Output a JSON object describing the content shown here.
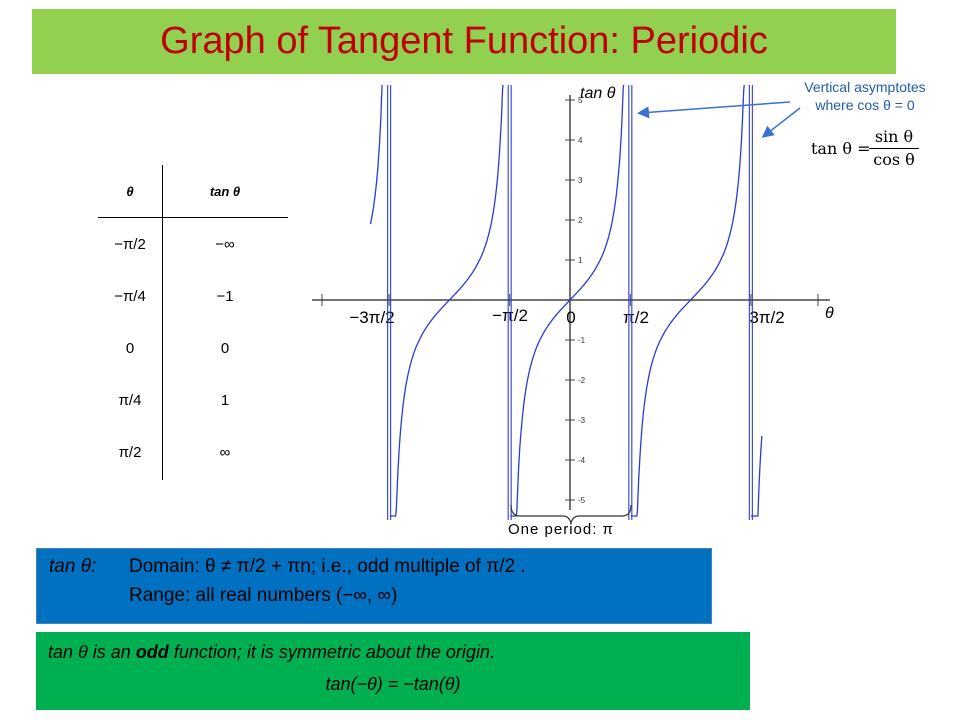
{
  "title": "Graph of Tangent Function: Periodic",
  "colors": {
    "title_bar": "#92d050",
    "title_text": "#c00000",
    "curve": "#2a3bd6",
    "asymptote_note": "#1f5ca8",
    "domain_box": "#0070c0",
    "odd_box": "#00b050"
  },
  "table": {
    "headers": [
      "θ",
      "tan θ"
    ],
    "rows": [
      [
        "−π/2",
        "−∞"
      ],
      [
        "−π/4",
        "−1"
      ],
      [
        "0",
        "0"
      ],
      [
        "π/4",
        "1"
      ],
      [
        "π/2",
        "∞"
      ]
    ]
  },
  "chart_data": {
    "type": "line",
    "function": "tan",
    "xlabel": "θ",
    "ylabel": "tan θ",
    "xlim": [
      -5.2,
      5.0
    ],
    "ylim": [
      -5.0,
      5.0
    ],
    "x_tick_labels": [
      "−3π/2",
      "−π/2",
      "0",
      "π/2",
      "3π/2"
    ],
    "x_tick_values": [
      -4.712,
      -1.571,
      0,
      1.571,
      4.712
    ],
    "y_tick_labels": [
      "-5",
      "-4",
      "-3",
      "-2",
      "-1",
      "1",
      "2",
      "3",
      "4",
      "5"
    ],
    "y_tick_values": [
      -5,
      -4,
      -3,
      -2,
      -1,
      1,
      2,
      3,
      4,
      5
    ],
    "asymptotes": [
      -4.712,
      -1.571,
      1.571,
      4.712
    ],
    "grid": false
  },
  "annotations": {
    "asymptote_line1": "Vertical asymptotes",
    "asymptote_line2": "where cos θ = 0",
    "formula_lhs": "tan θ =",
    "formula_num": "sin θ",
    "formula_den": "cos θ",
    "period": "One period: π"
  },
  "domain_box": {
    "label": "tan θ:",
    "line1": "Domain: θ ≠ π/2 + πn; i.e., odd multiple of π/2 .",
    "line2": "Range: all real numbers (−∞, ∞)"
  },
  "odd_box": {
    "line1_a": "tan θ is an ",
    "line1_b": "odd",
    "line1_c": " function; it is symmetric about the origin.",
    "line2": "tan(−θ) = −tan(θ)"
  }
}
